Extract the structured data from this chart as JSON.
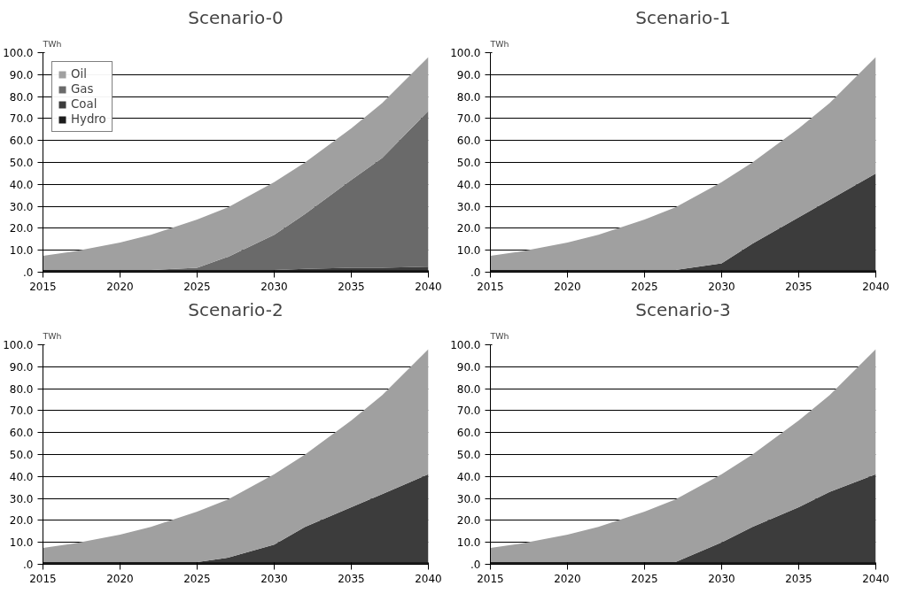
{
  "chart_data": [
    {
      "type": "area",
      "stacked": true,
      "title": "Scenario-0",
      "ylabel": "TWh",
      "x": [
        2015,
        2017,
        2020,
        2022,
        2025,
        2027,
        2030,
        2032,
        2035,
        2037,
        2040
      ],
      "xlim": [
        2015,
        2040
      ],
      "xticks": [
        2015,
        2020,
        2025,
        2030,
        2035,
        2040
      ],
      "ylim": [
        0,
        100
      ],
      "yticks": [
        {
          "value": 0,
          "label": ".0"
        },
        {
          "value": 10,
          "label": "10.0"
        },
        {
          "value": 20,
          "label": "20.0"
        },
        {
          "value": 30,
          "label": "30.0"
        },
        {
          "value": 40,
          "label": "40.0"
        },
        {
          "value": 50,
          "label": "50.0"
        },
        {
          "value": 60,
          "label": "60.0"
        },
        {
          "value": 70,
          "label": "70.0"
        },
        {
          "value": 80,
          "label": "80.0"
        },
        {
          "value": 90,
          "label": "90.0"
        },
        {
          "value": 100,
          "label": "100.0"
        }
      ],
      "grid": "y",
      "legend": "top left",
      "series": [
        {
          "name": "Hydro",
          "color": "#1c1c1c",
          "values": [
            1,
            1,
            1,
            1,
            1,
            1,
            1,
            1,
            1,
            1,
            1
          ]
        },
        {
          "name": "Coal",
          "color": "#3c3c3c",
          "values": [
            0,
            0,
            0,
            0,
            0,
            0,
            0,
            0.5,
            1,
            1,
            1.5
          ]
        },
        {
          "name": "Gas",
          "color": "#6a6a6a",
          "values": [
            0,
            0,
            0,
            0,
            1,
            6,
            16,
            25,
            40,
            50,
            71
          ]
        },
        {
          "name": "Oil",
          "color": "#a0a0a0",
          "values": [
            6.5,
            8.5,
            12.5,
            16,
            22,
            22.5,
            24,
            23.5,
            23.5,
            25,
            24.5
          ]
        }
      ]
    },
    {
      "type": "area",
      "stacked": true,
      "title": "Scenario-1",
      "ylabel": "TWh",
      "x": [
        2015,
        2017,
        2020,
        2022,
        2025,
        2027,
        2030,
        2032,
        2035,
        2037,
        2040
      ],
      "xlim": [
        2015,
        2040
      ],
      "xticks": [
        2015,
        2020,
        2025,
        2030,
        2035,
        2040
      ],
      "ylim": [
        0,
        100
      ],
      "yticks": [
        {
          "value": 0,
          "label": ".0"
        },
        {
          "value": 10,
          "label": "10.0"
        },
        {
          "value": 20,
          "label": "20.0"
        },
        {
          "value": 30,
          "label": "30.0"
        },
        {
          "value": 40,
          "label": "40.0"
        },
        {
          "value": 50,
          "label": "50.0"
        },
        {
          "value": 60,
          "label": "60.0"
        },
        {
          "value": 70,
          "label": "70.0"
        },
        {
          "value": 80,
          "label": "80.0"
        },
        {
          "value": 90,
          "label": "90.0"
        },
        {
          "value": 100,
          "label": "100.0"
        }
      ],
      "grid": "y",
      "series": [
        {
          "color": "#1c1c1c",
          "values": [
            1,
            1,
            1,
            1,
            1,
            1,
            1,
            1,
            1,
            1,
            1
          ]
        },
        {
          "color": "#3c3c3c",
          "values": [
            0,
            0,
            0,
            0,
            0,
            0,
            3,
            12,
            24,
            32,
            44
          ]
        },
        {
          "color": "#a0a0a0",
          "values": [
            6.5,
            8.5,
            12.5,
            16,
            23,
            28.5,
            37,
            37,
            40.5,
            44,
            53
          ]
        }
      ]
    },
    {
      "type": "area",
      "stacked": true,
      "title": "Scenario-2",
      "ylabel": "TWh",
      "x": [
        2015,
        2017,
        2020,
        2022,
        2025,
        2027,
        2030,
        2032,
        2035,
        2037,
        2040
      ],
      "xlim": [
        2015,
        2040
      ],
      "xticks": [
        2015,
        2020,
        2025,
        2030,
        2035,
        2040
      ],
      "ylim": [
        0,
        100
      ],
      "yticks": [
        {
          "value": 0,
          "label": ".0"
        },
        {
          "value": 10,
          "label": "10.0"
        },
        {
          "value": 20,
          "label": "20.0"
        },
        {
          "value": 30,
          "label": "30.0"
        },
        {
          "value": 40,
          "label": "40.0"
        },
        {
          "value": 50,
          "label": "50.0"
        },
        {
          "value": 60,
          "label": "60.0"
        },
        {
          "value": 70,
          "label": "70.0"
        },
        {
          "value": 80,
          "label": "80.0"
        },
        {
          "value": 90,
          "label": "90.0"
        },
        {
          "value": 100,
          "label": "100.0"
        }
      ],
      "grid": "y",
      "series": [
        {
          "color": "#1c1c1c",
          "values": [
            1,
            1,
            1,
            1,
            1,
            1,
            1,
            1,
            1,
            1,
            1
          ]
        },
        {
          "color": "#3c3c3c",
          "values": [
            0,
            0,
            0,
            0,
            0,
            2,
            8,
            16,
            25,
            31,
            40
          ]
        },
        {
          "color": "#a0a0a0",
          "values": [
            6.5,
            8.5,
            12.5,
            16,
            23,
            26.5,
            32,
            33,
            39.5,
            45,
            57
          ]
        }
      ]
    },
    {
      "type": "area",
      "stacked": true,
      "title": "Scenario-3",
      "ylabel": "TWh",
      "x": [
        2015,
        2017,
        2020,
        2022,
        2025,
        2027,
        2030,
        2032,
        2035,
        2037,
        2040
      ],
      "xlim": [
        2015,
        2040
      ],
      "xticks": [
        2015,
        2020,
        2025,
        2030,
        2035,
        2040
      ],
      "ylim": [
        0,
        100
      ],
      "yticks": [
        {
          "value": 0,
          "label": ".0"
        },
        {
          "value": 10,
          "label": "10.0"
        },
        {
          "value": 20,
          "label": "20.0"
        },
        {
          "value": 30,
          "label": "30.0"
        },
        {
          "value": 40,
          "label": "40.0"
        },
        {
          "value": 50,
          "label": "50.0"
        },
        {
          "value": 60,
          "label": "60.0"
        },
        {
          "value": 70,
          "label": "70.0"
        },
        {
          "value": 80,
          "label": "80.0"
        },
        {
          "value": 90,
          "label": "90.0"
        },
        {
          "value": 100,
          "label": "100.0"
        }
      ],
      "grid": "y",
      "series": [
        {
          "color": "#1c1c1c",
          "values": [
            1,
            1,
            1,
            1,
            1,
            1,
            1,
            1,
            1,
            1,
            1
          ]
        },
        {
          "color": "#3c3c3c",
          "values": [
            0,
            0,
            0,
            0,
            0,
            0,
            9,
            16,
            25,
            32,
            40
          ]
        },
        {
          "color": "#a0a0a0",
          "values": [
            6.5,
            8.5,
            12.5,
            16,
            23,
            28.5,
            31,
            33,
            39.5,
            44,
            57
          ]
        }
      ]
    }
  ]
}
